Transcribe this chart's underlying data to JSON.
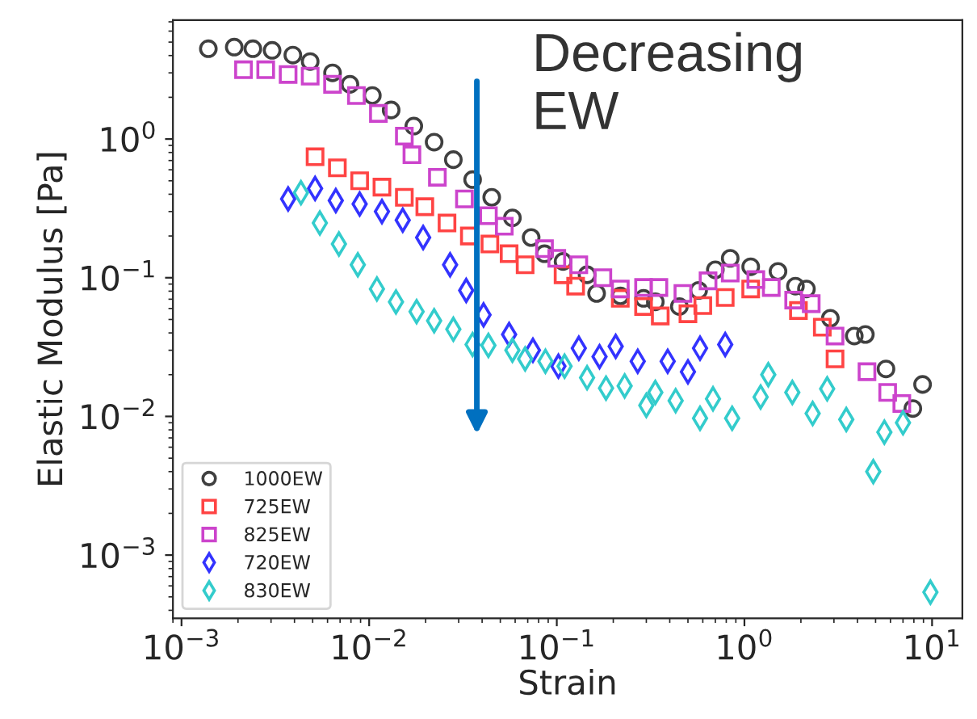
{
  "chart_data": {
    "type": "scatter",
    "xlabel": "Strain",
    "ylabel": "Elastic Modulus [Pa]",
    "log": "xy",
    "grid": false,
    "legend": "bottom left",
    "xlim": [
      0.0009,
      14.5
    ],
    "ylim": [
      0.00035,
      7.2
    ],
    "xticks": [
      {
        "value": 0.001,
        "label": "10$^{−3}$"
      },
      {
        "value": 0.01,
        "label": "10$^{−2}$"
      },
      {
        "value": 0.1,
        "label": "10$^{−1}$"
      },
      {
        "value": 1,
        "label": "10$^{0}$"
      },
      {
        "value": 10,
        "label": "10$^{1}$"
      }
    ],
    "yticks": [
      {
        "value": 0.001,
        "label": "10$^{−3}$"
      },
      {
        "value": 0.01,
        "label": "10$^{−2}$"
      },
      {
        "value": 0.1,
        "label": "10$^{−1}$"
      },
      {
        "value": 1,
        "label": "10$^{0}$"
      }
    ],
    "annotations": [
      "Decreasing\nEW"
    ],
    "series": [
      {
        "name": "1000EW",
        "color": "#404040",
        "marker": "circle",
        "x": [
          0.00139,
          0.00191,
          0.0024,
          0.00304,
          0.00392,
          0.00485,
          0.00638,
          0.0079,
          0.0104,
          0.0131,
          0.0173,
          0.0222,
          0.0281,
          0.0356,
          0.045,
          0.058,
          0.073,
          0.086,
          0.108,
          0.145,
          0.163,
          0.218,
          0.29,
          0.335,
          0.45,
          0.57,
          0.7,
          0.84,
          1.08,
          1.51,
          1.87,
          2.14,
          2.87,
          3.85,
          4.41,
          5.68,
          7.9,
          8.9
        ],
        "values": [
          4.48,
          4.6,
          4.48,
          4.36,
          4.03,
          3.62,
          3.0,
          2.48,
          2.06,
          1.62,
          1.24,
          0.95,
          0.71,
          0.51,
          0.38,
          0.27,
          0.195,
          0.149,
          0.131,
          0.105,
          0.077,
          0.074,
          0.071,
          0.067,
          0.062,
          0.081,
          0.114,
          0.138,
          0.12,
          0.111,
          0.087,
          0.083,
          0.051,
          0.038,
          0.039,
          0.022,
          0.0114,
          0.017
        ]
      },
      {
        "name": "725EW",
        "color": "#ff4444",
        "marker": "square",
        "x": [
          0.00515,
          0.00677,
          0.0089,
          0.0117,
          0.0154,
          0.0198,
          0.026,
          0.0342,
          0.044,
          0.0557,
          0.0678,
          0.108,
          0.126,
          0.218,
          0.29,
          0.356,
          0.5,
          0.6,
          0.79,
          1.08,
          1.94,
          2.6,
          3.04
        ],
        "values": [
          0.745,
          0.62,
          0.5,
          0.45,
          0.38,
          0.325,
          0.248,
          0.2,
          0.175,
          0.149,
          0.124,
          0.105,
          0.087,
          0.071,
          0.062,
          0.053,
          0.055,
          0.063,
          0.072,
          0.083,
          0.058,
          0.044,
          0.026
        ]
      },
      {
        "name": "825EW",
        "color": "#cc44cc",
        "marker": "square",
        "x": [
          0.00214,
          0.00281,
          0.0037,
          0.00485,
          0.00638,
          0.00855,
          0.0112,
          0.0154,
          0.0169,
          0.0231,
          0.0322,
          0.0432,
          0.0525,
          0.086,
          0.1,
          0.131,
          0.176,
          0.218,
          0.29,
          0.35,
          0.47,
          0.64,
          0.84,
          1.15,
          1.39,
          1.83,
          2.27,
          3.04,
          4.5,
          5.8,
          6.9
        ],
        "values": [
          3.16,
          3.16,
          2.92,
          2.84,
          2.48,
          2.06,
          1.53,
          1.05,
          0.77,
          0.53,
          0.37,
          0.28,
          0.235,
          0.162,
          0.138,
          0.124,
          0.1,
          0.083,
          0.085,
          0.085,
          0.077,
          0.095,
          0.108,
          0.097,
          0.085,
          0.069,
          0.065,
          0.038,
          0.021,
          0.0149,
          0.0124
        ]
      },
      {
        "name": "720EW",
        "color": "#3333ff",
        "marker": "diamond",
        "x": [
          0.0037,
          0.00515,
          0.00664,
          0.0089,
          0.0117,
          0.0151,
          0.0194,
          0.027,
          0.0329,
          0.0407,
          0.0557,
          0.0746,
          0.102,
          0.131,
          0.169,
          0.206,
          0.27,
          0.39,
          0.5,
          0.58,
          0.79
        ],
        "values": [
          0.37,
          0.44,
          0.36,
          0.34,
          0.3,
          0.26,
          0.195,
          0.124,
          0.081,
          0.054,
          0.039,
          0.03,
          0.023,
          0.031,
          0.027,
          0.032,
          0.025,
          0.025,
          0.021,
          0.031,
          0.033
        ]
      },
      {
        "name": "830EW",
        "color": "#33cccc",
        "marker": "diamond",
        "x": [
          0.00433,
          0.00546,
          0.0069,
          0.0087,
          0.011,
          0.0139,
          0.0179,
          0.0222,
          0.0281,
          0.0356,
          0.0432,
          0.058,
          0.0678,
          0.087,
          0.11,
          0.145,
          0.183,
          0.23,
          0.3,
          0.335,
          0.43,
          0.58,
          0.68,
          0.86,
          1.22,
          1.34,
          1.8,
          2.31,
          2.76,
          3.49,
          4.86,
          5.57,
          7.0,
          9.8
        ],
        "values": [
          0.41,
          0.248,
          0.175,
          0.124,
          0.083,
          0.067,
          0.057,
          0.049,
          0.0425,
          0.033,
          0.0325,
          0.03,
          0.026,
          0.025,
          0.023,
          0.019,
          0.016,
          0.0166,
          0.012,
          0.0149,
          0.013,
          0.0097,
          0.0134,
          0.0097,
          0.0138,
          0.02,
          0.0149,
          0.0105,
          0.0158,
          0.0095,
          0.004,
          0.0077,
          0.009,
          0.00054
        ]
      }
    ]
  }
}
